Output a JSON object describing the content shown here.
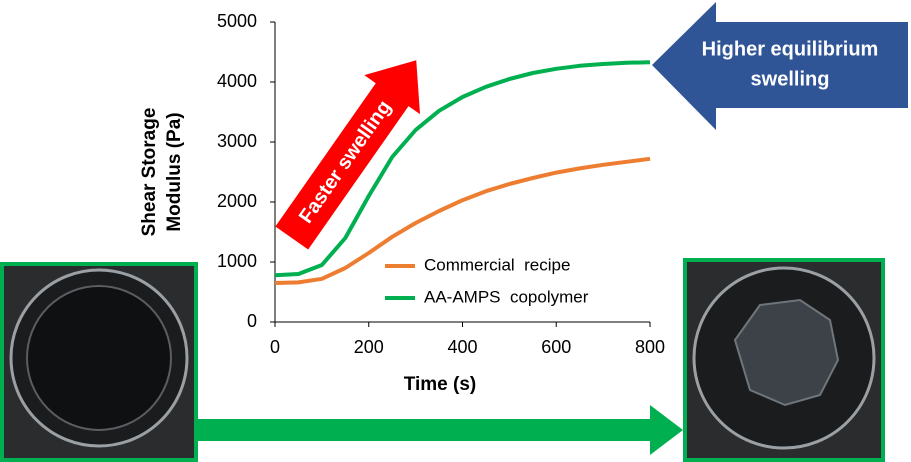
{
  "chart_data": {
    "type": "line",
    "y_label": [
      "Shear Storage",
      "Modulus (Pa)"
    ],
    "x_label": "Time (s)",
    "x": [
      0,
      50,
      100,
      150,
      200,
      250,
      300,
      350,
      400,
      450,
      500,
      550,
      600,
      650,
      700,
      750,
      800
    ],
    "series": [
      {
        "name": "Commercial  recipe",
        "color": "#ed7d31",
        "values": [
          650,
          660,
          720,
          900,
          1150,
          1420,
          1650,
          1850,
          2030,
          2180,
          2300,
          2400,
          2490,
          2560,
          2620,
          2670,
          2720
        ]
      },
      {
        "name": "AA-AMPS  copolymer",
        "color": "#00b050",
        "values": [
          780,
          800,
          950,
          1400,
          2100,
          2750,
          3200,
          3520,
          3750,
          3920,
          4050,
          4150,
          4220,
          4270,
          4300,
          4320,
          4330
        ]
      }
    ],
    "xlim": [
      0,
      800
    ],
    "xticks": [
      0,
      200,
      400,
      600,
      800
    ],
    "ylim": [
      0,
      5000
    ],
    "yticks": [
      0,
      1000,
      2000,
      3000,
      4000,
      5000
    ],
    "annotations": [
      "Faster swelling",
      [
        "Higher equilibrium",
        "swelling"
      ]
    ]
  }
}
